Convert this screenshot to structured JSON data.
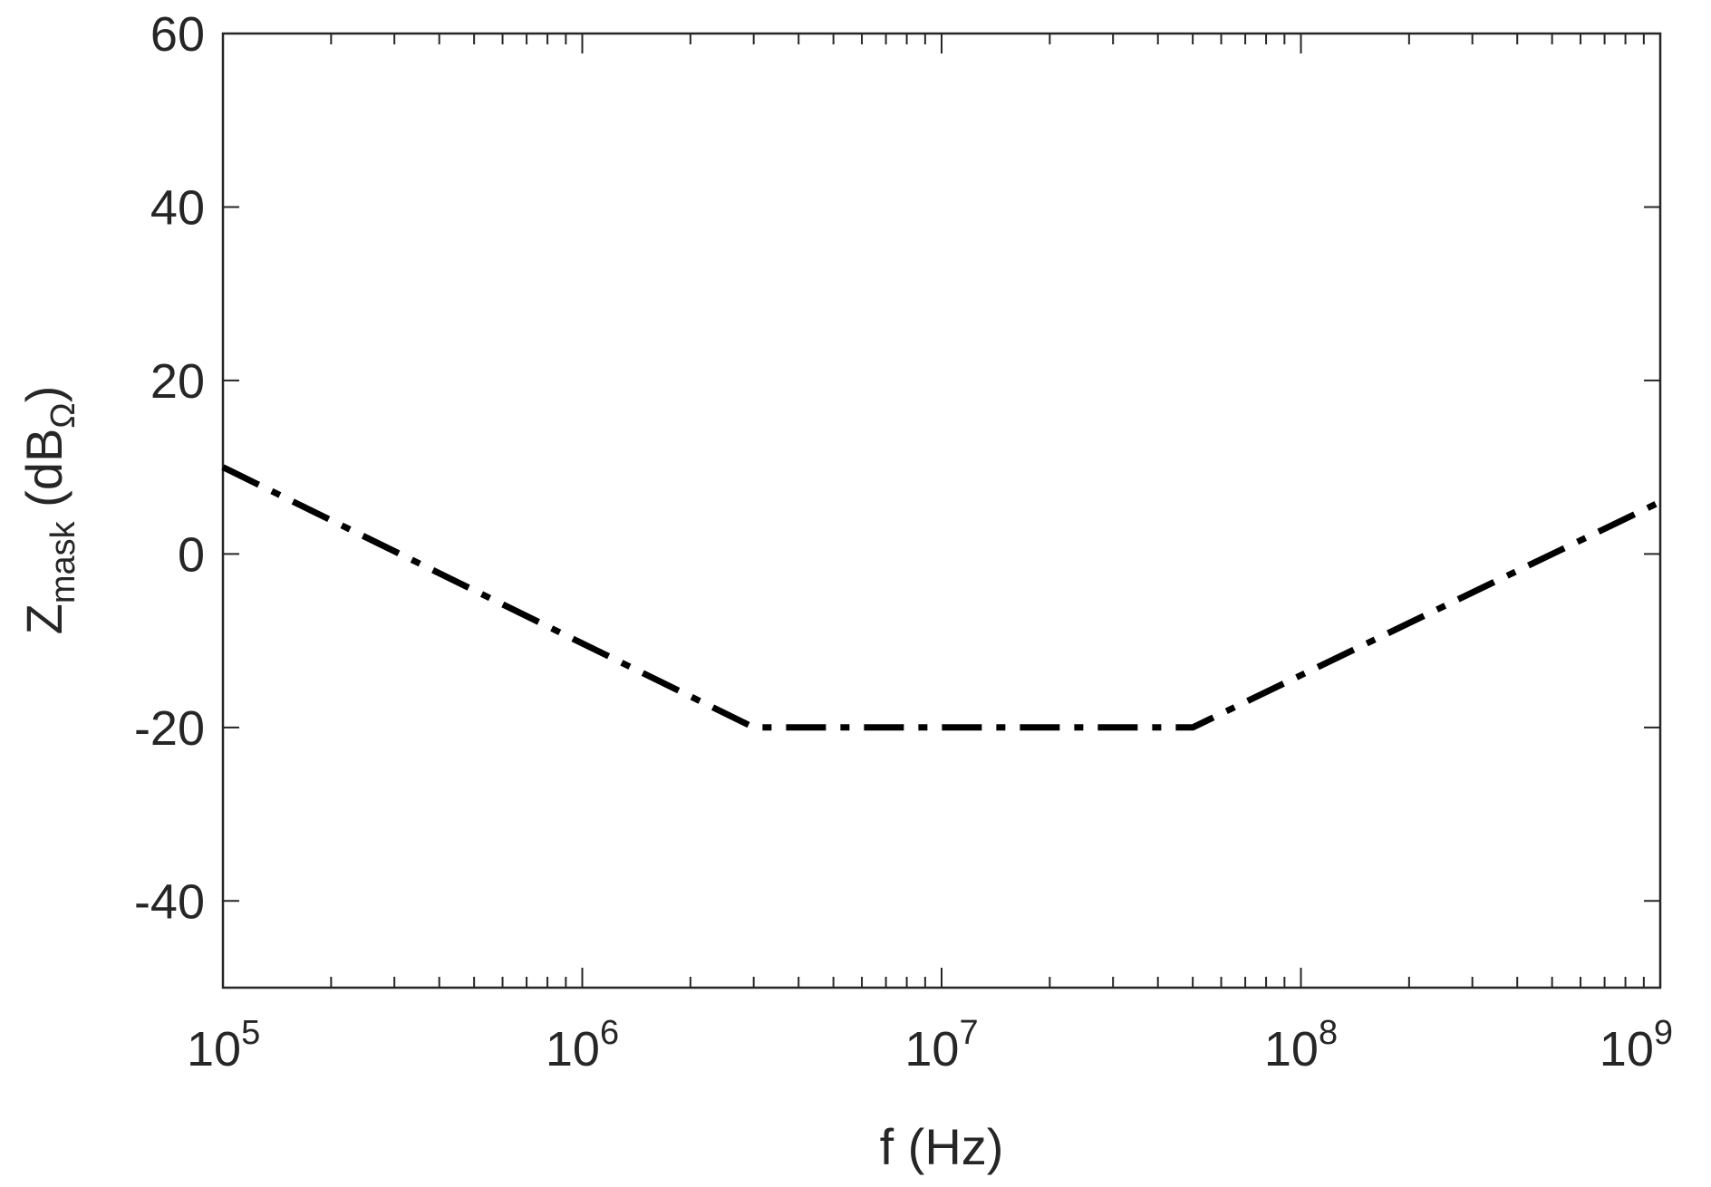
{
  "chart_data": {
    "type": "line",
    "xscale": "log",
    "xlim": [
      100000,
      1000000000
    ],
    "ylim": [
      -50,
      60
    ],
    "xlabel": "f (Hz)",
    "ylabel": {
      "main": "Z",
      "sub": "mask",
      "unit_open": " (dB",
      "unit_sub": "Ω",
      "unit_close": ")"
    },
    "x_ticks": [
      {
        "base": "10",
        "exp": "5",
        "value": 100000
      },
      {
        "base": "10",
        "exp": "6",
        "value": 1000000
      },
      {
        "base": "10",
        "exp": "7",
        "value": 10000000
      },
      {
        "base": "10",
        "exp": "8",
        "value": 100000000
      },
      {
        "base": "10",
        "exp": "9",
        "value": 1000000000
      }
    ],
    "y_ticks": [
      "60",
      "40",
      "20",
      "0",
      "-20",
      "-40"
    ],
    "y_tick_values": [
      60,
      40,
      20,
      0,
      -20,
      -40
    ],
    "grid": false,
    "series": [
      {
        "line_style": "dash-dot",
        "color": "#000000",
        "points": [
          {
            "x": 100000,
            "y": 10
          },
          {
            "x": 3000000,
            "y": -20
          },
          {
            "x": 50000000,
            "y": -20
          },
          {
            "x": 1000000000,
            "y": 6
          }
        ]
      }
    ]
  },
  "colors": {
    "axis": "#262626",
    "frame": "#262626",
    "line": "#000000"
  }
}
